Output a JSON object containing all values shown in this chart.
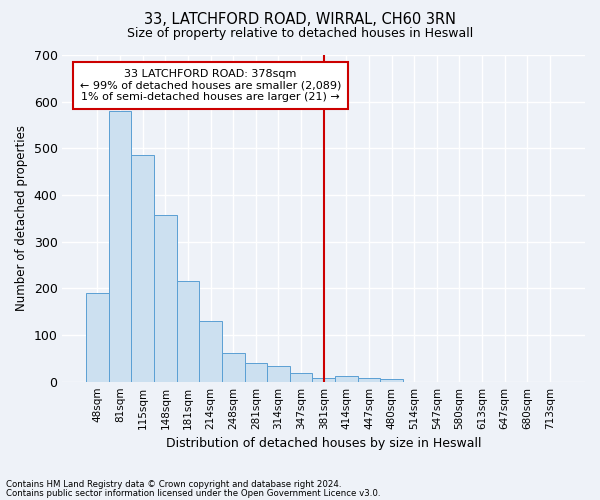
{
  "title1": "33, LATCHFORD ROAD, WIRRAL, CH60 3RN",
  "title2": "Size of property relative to detached houses in Heswall",
  "xlabel": "Distribution of detached houses by size in Heswall",
  "ylabel": "Number of detached properties",
  "bar_color": "#cce0f0",
  "bar_edge_color": "#5a9fd4",
  "categories": [
    "48sqm",
    "81sqm",
    "115sqm",
    "148sqm",
    "181sqm",
    "214sqm",
    "248sqm",
    "281sqm",
    "314sqm",
    "347sqm",
    "381sqm",
    "414sqm",
    "447sqm",
    "480sqm",
    "514sqm",
    "547sqm",
    "580sqm",
    "613sqm",
    "647sqm",
    "680sqm",
    "713sqm"
  ],
  "values": [
    190,
    580,
    485,
    357,
    216,
    130,
    61,
    40,
    33,
    18,
    8,
    12,
    8,
    5,
    0,
    0,
    0,
    0,
    0,
    0,
    0
  ],
  "ylim": [
    0,
    700
  ],
  "yticks": [
    0,
    100,
    200,
    300,
    400,
    500,
    600,
    700
  ],
  "vline_index": 10,
  "vline_color": "#cc0000",
  "annotation_text": "33 LATCHFORD ROAD: 378sqm\n← 99% of detached houses are smaller (2,089)\n1% of semi-detached houses are larger (21) →",
  "annotation_box_color": "#ffffff",
  "annotation_box_edge": "#cc0000",
  "footer1": "Contains HM Land Registry data © Crown copyright and database right 2024.",
  "footer2": "Contains public sector information licensed under the Open Government Licence v3.0.",
  "bg_color": "#eef2f8",
  "grid_color": "#ffffff"
}
